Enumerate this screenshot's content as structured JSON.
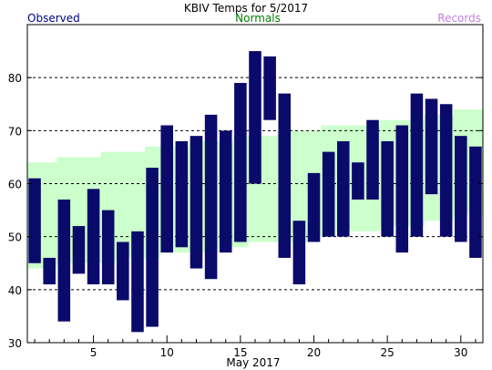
{
  "chart_data": {
    "type": "bar",
    "title": "KBIV Temps for 5/2017",
    "xlabel": "May 2017",
    "ylabel": "",
    "legend": {
      "observed": "Observed",
      "normals": "Normals",
      "records": "Records"
    },
    "colors": {
      "observed": "#0a0a6b",
      "observed_legend": "#000080",
      "normals_fill": "#ccffcc",
      "normals_legend": "#008000",
      "records_legend": "#c080e0",
      "grid": "#000000"
    },
    "ylim": [
      30,
      90
    ],
    "yticks": [
      30,
      40,
      50,
      60,
      70,
      80
    ],
    "xlim": [
      0.5,
      31.5
    ],
    "xticks_labeled": [
      5,
      10,
      15,
      20,
      25,
      30
    ],
    "gridlines_y": [
      40,
      50,
      60,
      70,
      80
    ],
    "grid": true,
    "days": [
      1,
      2,
      3,
      4,
      5,
      6,
      7,
      8,
      9,
      10,
      11,
      12,
      13,
      14,
      15,
      16,
      17,
      18,
      19,
      20,
      21,
      22,
      23,
      24,
      25,
      26,
      27,
      28,
      29,
      30,
      31
    ],
    "series": [
      {
        "name": "Observed",
        "high": [
          61,
          46,
          57,
          52,
          59,
          55,
          49,
          51,
          63,
          71,
          68,
          69,
          73,
          70,
          79,
          85,
          84,
          77,
          53,
          62,
          66,
          68,
          64,
          72,
          68,
          71,
          77,
          76,
          75,
          69,
          67
        ],
        "low": [
          45,
          41,
          34,
          43,
          41,
          41,
          38,
          32,
          33,
          47,
          48,
          44,
          42,
          47,
          49,
          60,
          72,
          46,
          41,
          49,
          50,
          50,
          57,
          57,
          50,
          47,
          50,
          58,
          50,
          49,
          46
        ]
      },
      {
        "name": "Normals",
        "high": [
          64,
          64,
          65,
          65,
          65,
          66,
          66,
          66,
          67,
          67,
          67,
          68,
          68,
          68,
          69,
          69,
          69,
          70,
          70,
          70,
          71,
          71,
          71,
          71,
          72,
          72,
          72,
          73,
          73,
          74,
          74
        ],
        "low": [
          44,
          44,
          45,
          45,
          45,
          45,
          46,
          46,
          46,
          47,
          47,
          47,
          47,
          48,
          48,
          49,
          49,
          49,
          49,
          50,
          50,
          51,
          51,
          51,
          52,
          52,
          52,
          53,
          53,
          54,
          54
        ]
      }
    ]
  }
}
